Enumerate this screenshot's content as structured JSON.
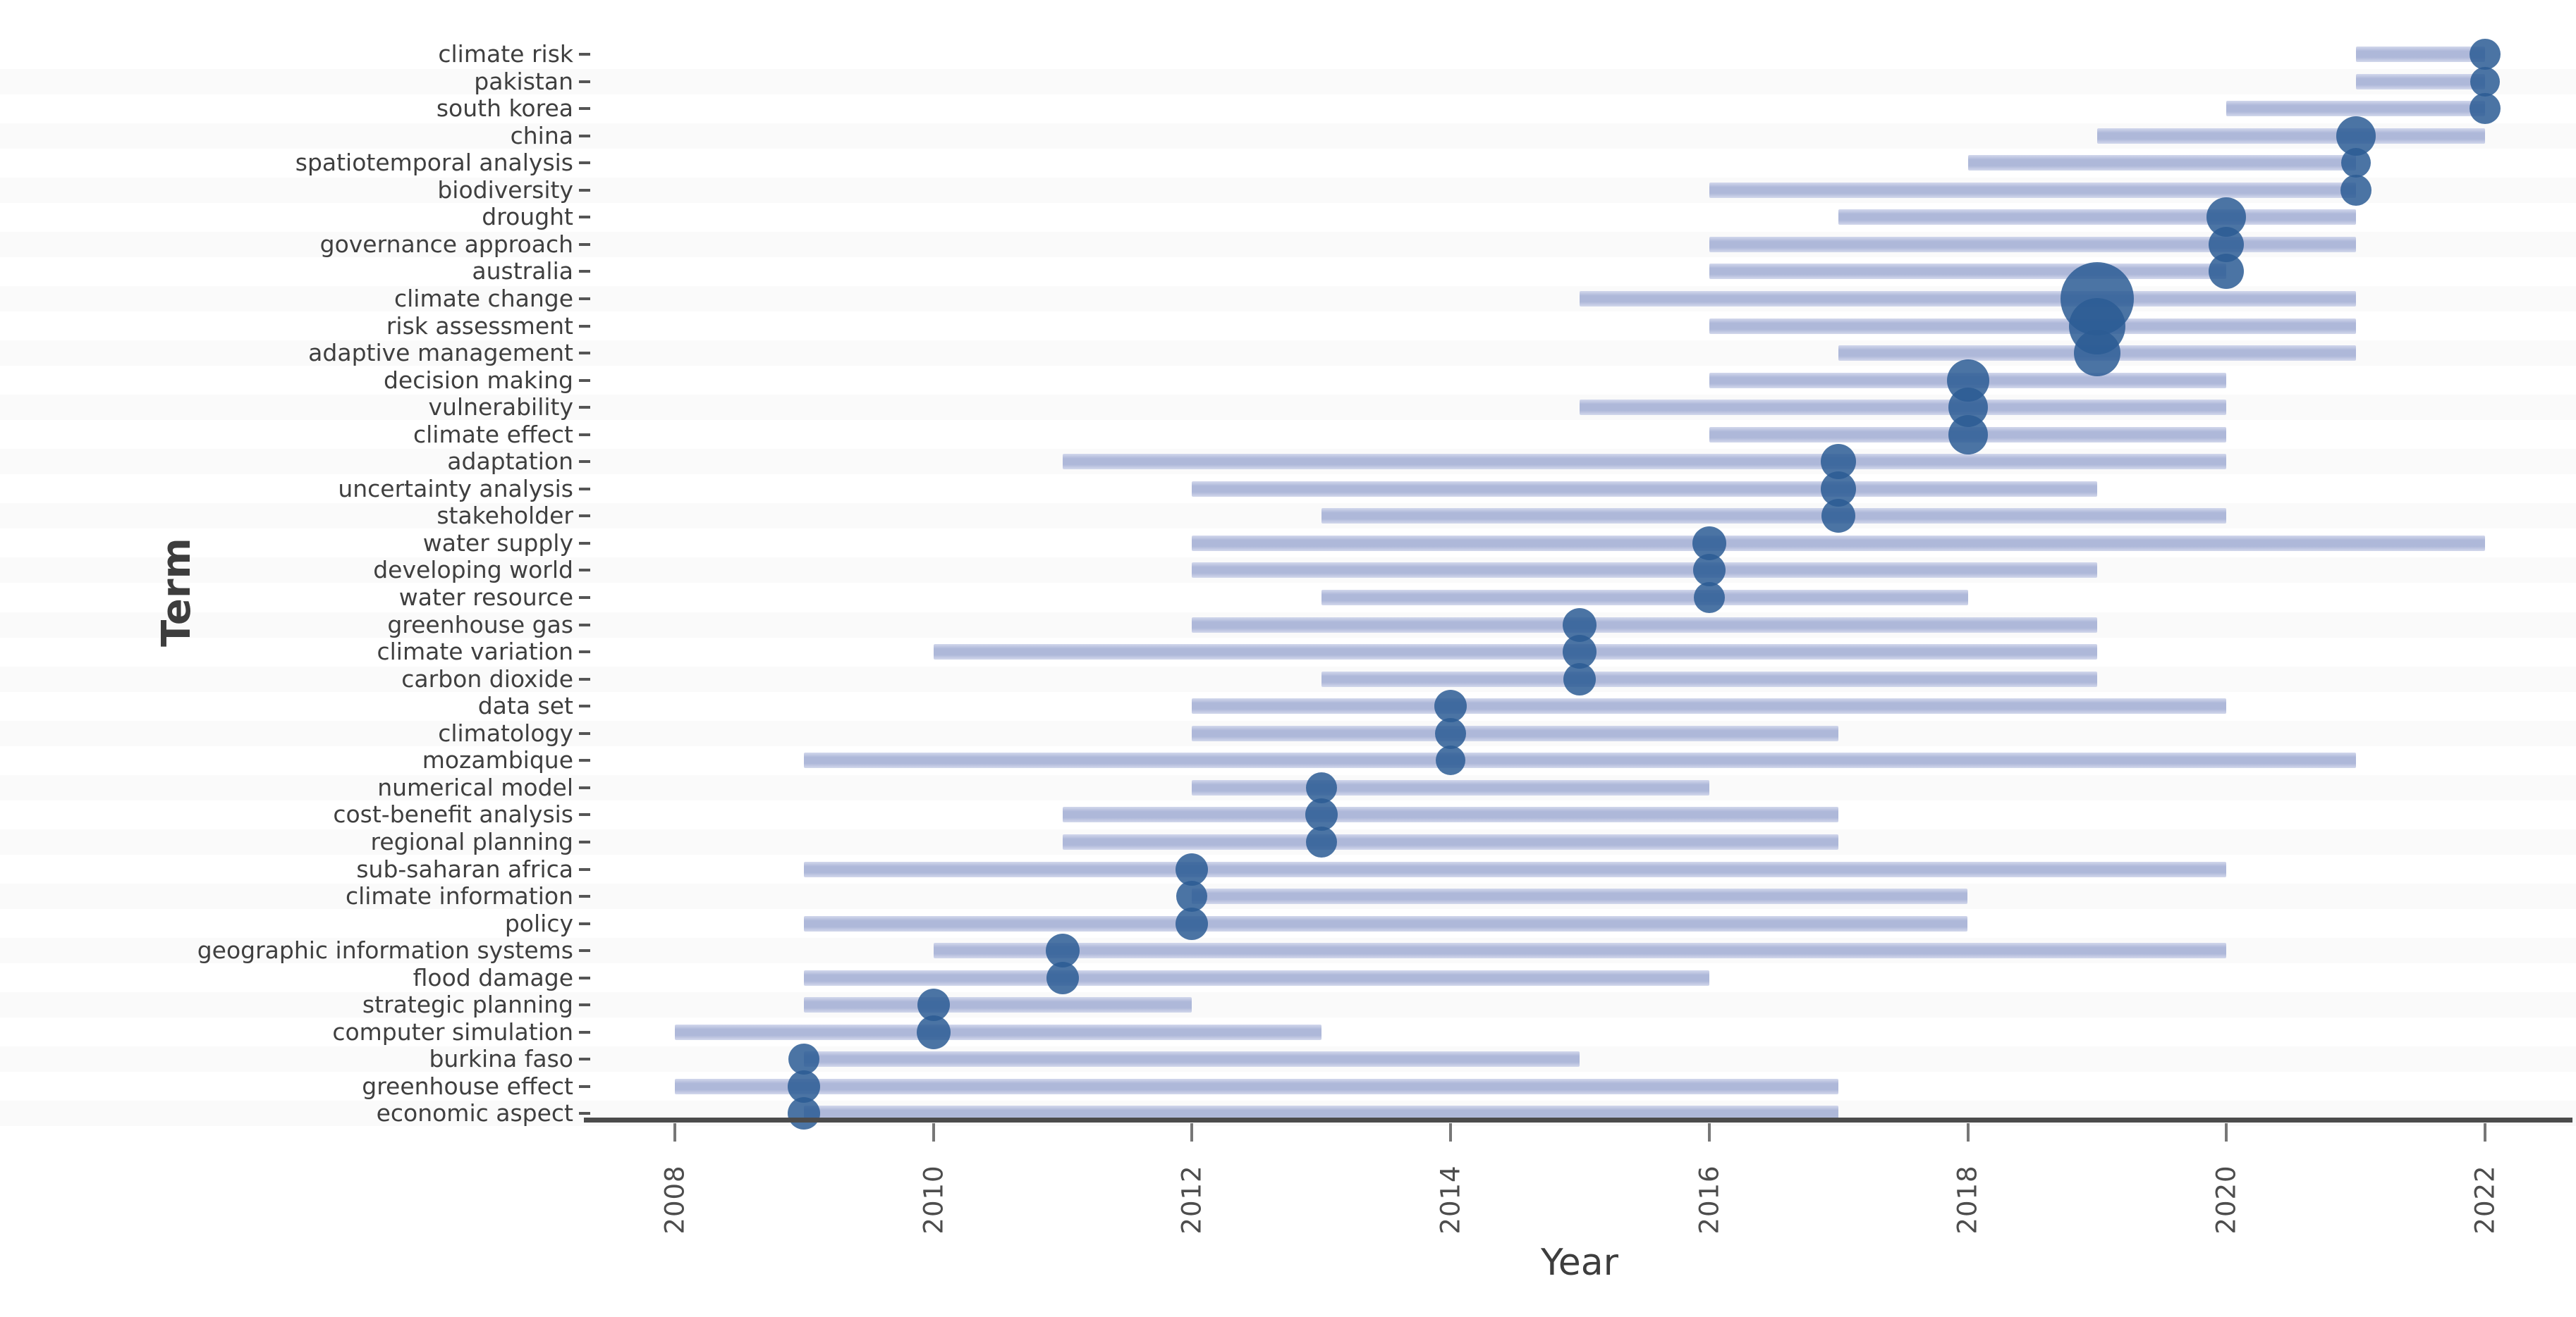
{
  "chart_data": {
    "type": "scatter",
    "subtype": "bubble-with-range-bars",
    "title": "",
    "xlabel": "Year",
    "ylabel": "Term",
    "x_ticks": [
      2008,
      2010,
      2012,
      2014,
      2016,
      2018,
      2020,
      2022
    ],
    "xlim": [
      2007.4,
      2022.7
    ],
    "grid": "off",
    "legend": "none",
    "bar_color": "#aeb8d9",
    "dot_color": "#2b5c94",
    "axis_color": "#4b4b4b",
    "text_color": "#3f3f3f",
    "y_categories_top_to_bottom": [
      "climate risk",
      "pakistan",
      "south korea",
      "china",
      "spatiotemporal analysis",
      "biodiversity",
      "drought",
      "governance approach",
      "australia",
      "climate change",
      "risk assessment",
      "adaptive management",
      "decision making",
      "vulnerability",
      "climate effect",
      "adaptation",
      "uncertainty analysis",
      "stakeholder",
      "water supply",
      "developing world",
      "water resource",
      "greenhouse gas",
      "climate variation",
      "carbon dioxide",
      "data set",
      "climatology",
      "mozambique",
      "numerical model",
      "cost-benefit analysis",
      "regional planning",
      "sub-saharan africa",
      "climate information",
      "policy",
      "geographic information systems",
      "flood damage",
      "strategic planning",
      "computer simulation",
      "burkina faso",
      "greenhouse effect",
      "economic aspect"
    ],
    "series": [
      {
        "term": "climate risk",
        "range_start": 2021,
        "range_end": 2022,
        "peak_year": 2022,
        "bubble_radius_px": 22
      },
      {
        "term": "pakistan",
        "range_start": 2021,
        "range_end": 2022,
        "peak_year": 2022,
        "bubble_radius_px": 21
      },
      {
        "term": "south korea",
        "range_start": 2020,
        "range_end": 2022,
        "peak_year": 2022,
        "bubble_radius_px": 22
      },
      {
        "term": "china",
        "range_start": 2019,
        "range_end": 2022,
        "peak_year": 2021,
        "bubble_radius_px": 28
      },
      {
        "term": "spatiotemporal analysis",
        "range_start": 2018,
        "range_end": 2021,
        "peak_year": 2021,
        "bubble_radius_px": 21
      },
      {
        "term": "biodiversity",
        "range_start": 2016,
        "range_end": 2021,
        "peak_year": 2021,
        "bubble_radius_px": 22
      },
      {
        "term": "drought",
        "range_start": 2017,
        "range_end": 2021,
        "peak_year": 2020,
        "bubble_radius_px": 28
      },
      {
        "term": "governance approach",
        "range_start": 2016,
        "range_end": 2021,
        "peak_year": 2020,
        "bubble_radius_px": 25
      },
      {
        "term": "australia",
        "range_start": 2016,
        "range_end": 2020,
        "peak_year": 2020,
        "bubble_radius_px": 25
      },
      {
        "term": "climate change",
        "range_start": 2015,
        "range_end": 2021,
        "peak_year": 2019,
        "bubble_radius_px": 52
      },
      {
        "term": "risk assessment",
        "range_start": 2016,
        "range_end": 2021,
        "peak_year": 2019,
        "bubble_radius_px": 40
      },
      {
        "term": "adaptive management",
        "range_start": 2017,
        "range_end": 2021,
        "peak_year": 2019,
        "bubble_radius_px": 33
      },
      {
        "term": "decision making",
        "range_start": 2016,
        "range_end": 2020,
        "peak_year": 2018,
        "bubble_radius_px": 30
      },
      {
        "term": "vulnerability",
        "range_start": 2015,
        "range_end": 2020,
        "peak_year": 2018,
        "bubble_radius_px": 28
      },
      {
        "term": "climate effect",
        "range_start": 2016,
        "range_end": 2020,
        "peak_year": 2018,
        "bubble_radius_px": 28
      },
      {
        "term": "adaptation",
        "range_start": 2011,
        "range_end": 2020,
        "peak_year": 2017,
        "bubble_radius_px": 25
      },
      {
        "term": "uncertainty analysis",
        "range_start": 2012,
        "range_end": 2019,
        "peak_year": 2017,
        "bubble_radius_px": 25
      },
      {
        "term": "stakeholder",
        "range_start": 2013,
        "range_end": 2020,
        "peak_year": 2017,
        "bubble_radius_px": 24
      },
      {
        "term": "water supply",
        "range_start": 2012,
        "range_end": 2022,
        "peak_year": 2016,
        "bubble_radius_px": 24
      },
      {
        "term": "developing world",
        "range_start": 2012,
        "range_end": 2019,
        "peak_year": 2016,
        "bubble_radius_px": 23
      },
      {
        "term": "water resource",
        "range_start": 2013,
        "range_end": 2018,
        "peak_year": 2016,
        "bubble_radius_px": 22
      },
      {
        "term": "greenhouse gas",
        "range_start": 2012,
        "range_end": 2019,
        "peak_year": 2015,
        "bubble_radius_px": 24
      },
      {
        "term": "climate variation",
        "range_start": 2010,
        "range_end": 2019,
        "peak_year": 2015,
        "bubble_radius_px": 24
      },
      {
        "term": "carbon dioxide",
        "range_start": 2013,
        "range_end": 2019,
        "peak_year": 2015,
        "bubble_radius_px": 23
      },
      {
        "term": "data set",
        "range_start": 2012,
        "range_end": 2020,
        "peak_year": 2014,
        "bubble_radius_px": 23
      },
      {
        "term": "climatology",
        "range_start": 2012,
        "range_end": 2017,
        "peak_year": 2014,
        "bubble_radius_px": 22
      },
      {
        "term": "mozambique",
        "range_start": 2009,
        "range_end": 2021,
        "peak_year": 2014,
        "bubble_radius_px": 21
      },
      {
        "term": "numerical model",
        "range_start": 2012,
        "range_end": 2016,
        "peak_year": 2013,
        "bubble_radius_px": 22
      },
      {
        "term": "cost-benefit analysis",
        "range_start": 2011,
        "range_end": 2017,
        "peak_year": 2013,
        "bubble_radius_px": 23
      },
      {
        "term": "regional planning",
        "range_start": 2011,
        "range_end": 2017,
        "peak_year": 2013,
        "bubble_radius_px": 22
      },
      {
        "term": "sub-saharan africa",
        "range_start": 2009,
        "range_end": 2020,
        "peak_year": 2012,
        "bubble_radius_px": 23
      },
      {
        "term": "climate information",
        "range_start": 2012,
        "range_end": 2018,
        "peak_year": 2012,
        "bubble_radius_px": 22
      },
      {
        "term": "policy",
        "range_start": 2009,
        "range_end": 2018,
        "peak_year": 2012,
        "bubble_radius_px": 23
      },
      {
        "term": "geographic information systems",
        "range_start": 2010,
        "range_end": 2020,
        "peak_year": 2011,
        "bubble_radius_px": 24
      },
      {
        "term": "flood damage",
        "range_start": 2009,
        "range_end": 2016,
        "peak_year": 2011,
        "bubble_radius_px": 23
      },
      {
        "term": "strategic planning",
        "range_start": 2009,
        "range_end": 2012,
        "peak_year": 2010,
        "bubble_radius_px": 23
      },
      {
        "term": "computer simulation",
        "range_start": 2008,
        "range_end": 2013,
        "peak_year": 2010,
        "bubble_radius_px": 24
      },
      {
        "term": "burkina faso",
        "range_start": 2009,
        "range_end": 2015,
        "peak_year": 2009,
        "bubble_radius_px": 22
      },
      {
        "term": "greenhouse effect",
        "range_start": 2008,
        "range_end": 2017,
        "peak_year": 2009,
        "bubble_radius_px": 23
      },
      {
        "term": "economic aspect",
        "range_start": 2009,
        "range_end": 2017,
        "peak_year": 2009,
        "bubble_radius_px": 23
      }
    ]
  }
}
